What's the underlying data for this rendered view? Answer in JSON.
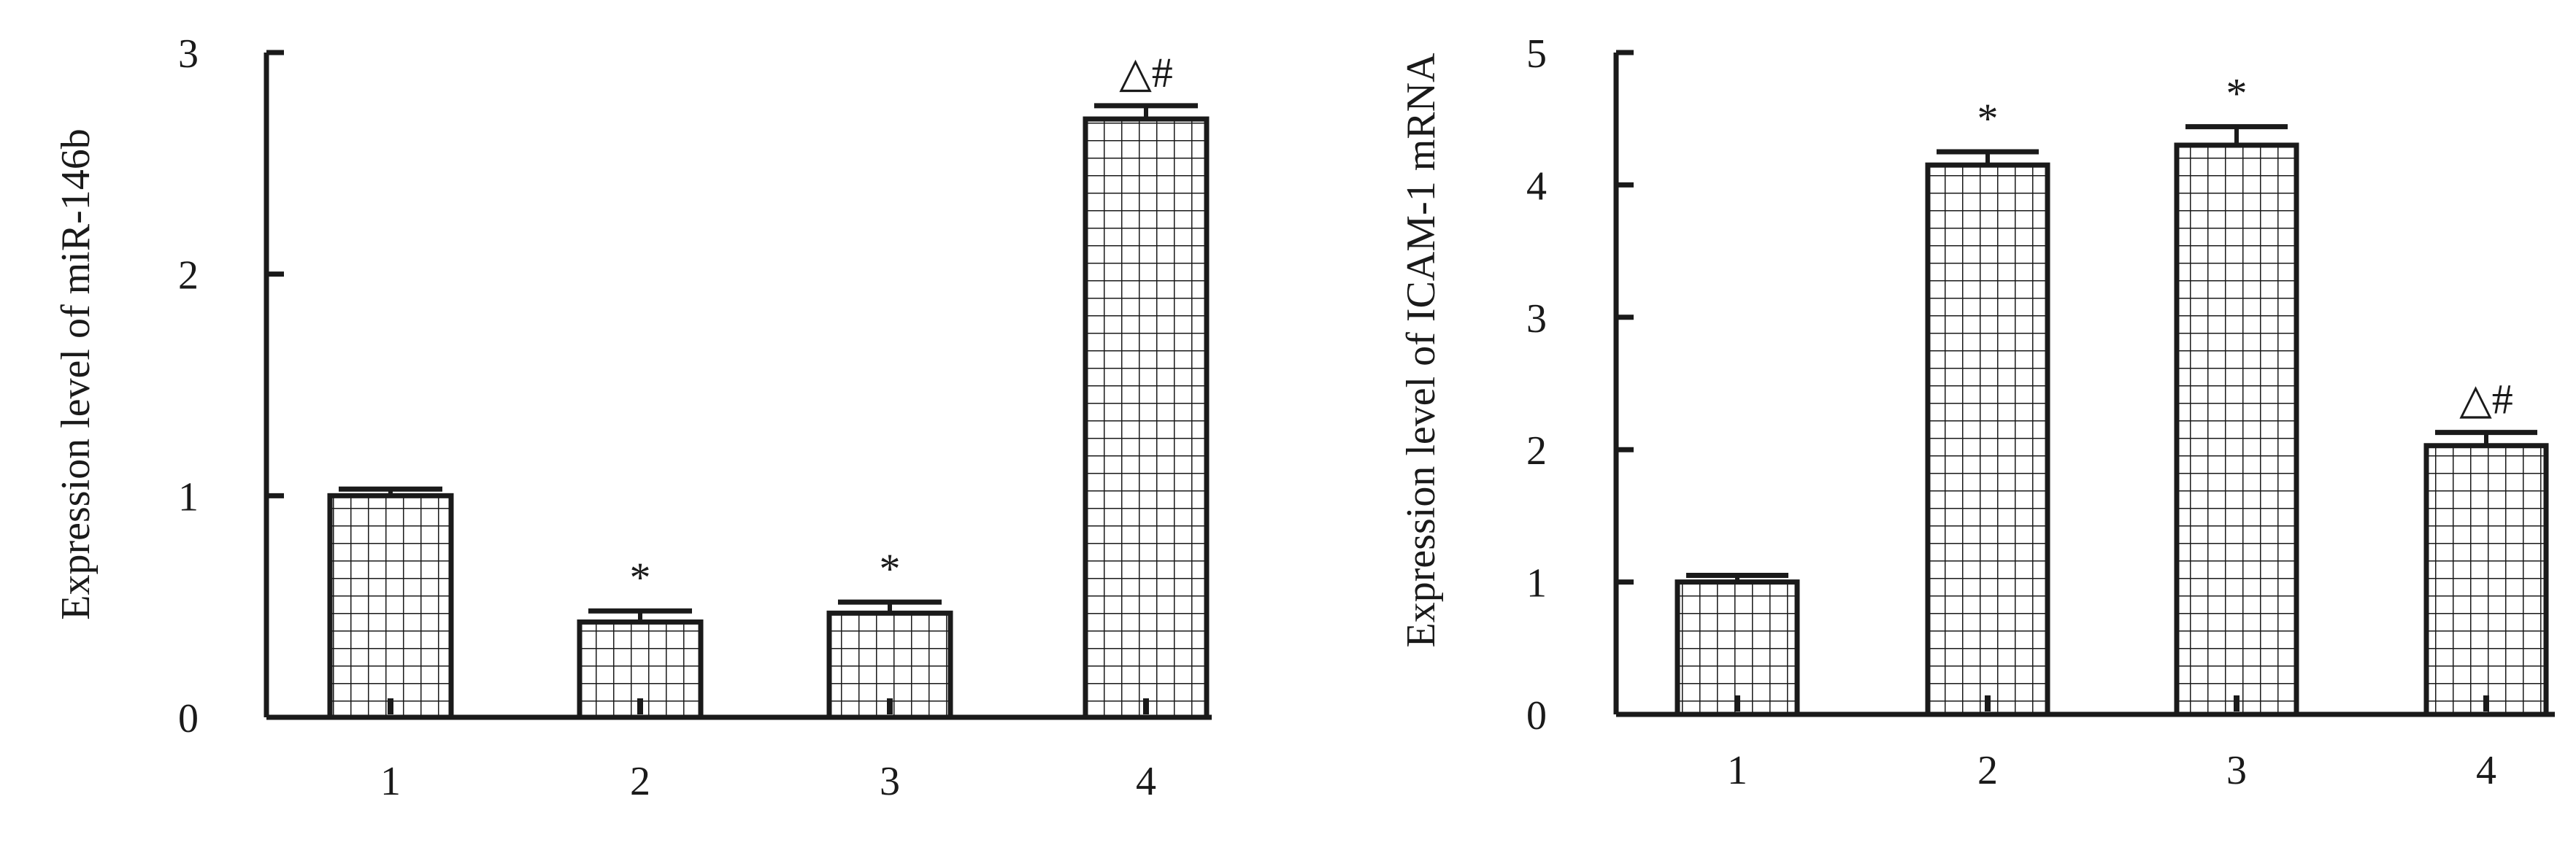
{
  "chart_data": [
    {
      "type": "bar",
      "title": "",
      "xlabel": "",
      "ylabel": "Expression level of miR-146b",
      "categories": [
        "1",
        "2",
        "3",
        "4"
      ],
      "values": [
        1.0,
        0.43,
        0.47,
        2.7
      ],
      "errors": [
        0.03,
        0.05,
        0.05,
        0.06
      ],
      "annotations": [
        "",
        "*",
        "*",
        "△#"
      ],
      "ylim": [
        0,
        3
      ],
      "yticks": [
        "0",
        "1",
        "2",
        "3"
      ],
      "bar_pattern": "grid-hatch",
      "grid": false,
      "legend": "none"
    },
    {
      "type": "bar",
      "title": "",
      "xlabel": "",
      "ylabel": "Expression level of ICAM-1 mRNA",
      "categories": [
        "1",
        "2",
        "3",
        "4"
      ],
      "values": [
        1.0,
        4.15,
        4.3,
        2.03
      ],
      "errors": [
        0.05,
        0.1,
        0.14,
        0.1
      ],
      "annotations": [
        "",
        "*",
        "*",
        "△#"
      ],
      "ylim": [
        0,
        5
      ],
      "yticks": [
        "0",
        "1",
        "2",
        "3",
        "4",
        "5"
      ],
      "bar_pattern": "grid-hatch",
      "grid": false,
      "legend": "none"
    }
  ],
  "colors": {
    "ink": "#1a1a1a",
    "background": "#ffffff"
  }
}
